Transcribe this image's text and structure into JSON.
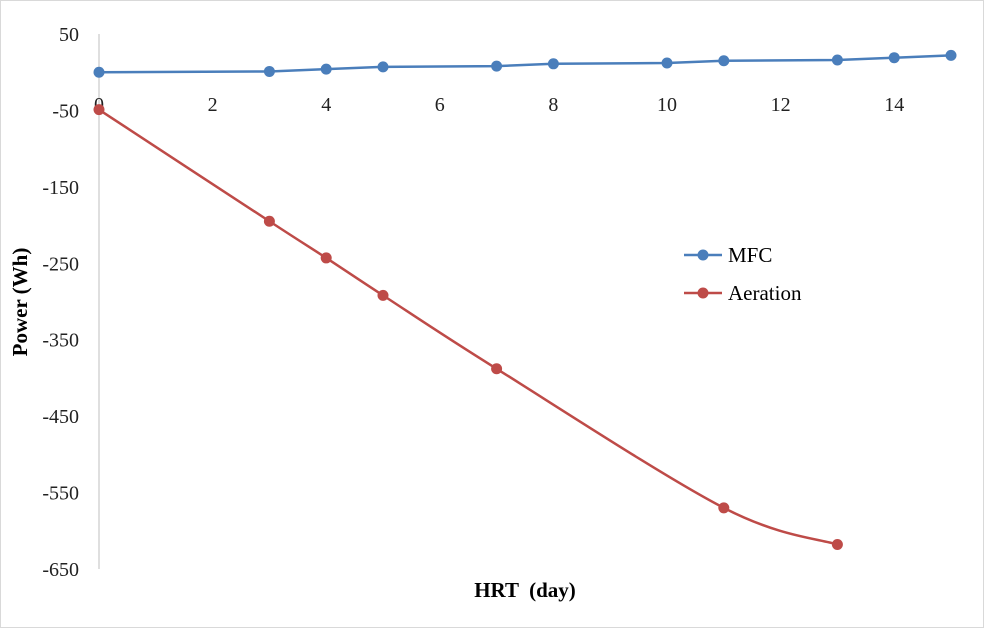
{
  "chart_data": {
    "type": "line",
    "xlabel": "HRT  (day)",
    "ylabel": "Power (Wh)",
    "xlim": [
      0,
      15
    ],
    "ylim": [
      -650,
      50
    ],
    "x_ticks": [
      "0",
      "2",
      "4",
      "6",
      "8",
      "10",
      "12",
      "14"
    ],
    "y_ticks": [
      "50",
      "-50",
      "-150",
      "-250",
      "-350",
      "-450",
      "-550",
      "-650"
    ],
    "grid": false,
    "legend_position": "right",
    "series": [
      {
        "name": "MFC",
        "color": "#4a7ebb",
        "smooth": false,
        "x": [
          0,
          3,
          4,
          5,
          7,
          8,
          10,
          11,
          13,
          14,
          15
        ],
        "y": [
          0,
          1,
          4,
          7,
          8,
          11,
          12,
          15,
          16,
          19,
          22
        ]
      },
      {
        "name": "Aeration",
        "color": "#be4b48",
        "smooth": true,
        "x": [
          0,
          3,
          4,
          5,
          7,
          11,
          13
        ],
        "y": [
          -49,
          -195,
          -243,
          -292,
          -388,
          -570,
          -618
        ]
      }
    ]
  }
}
